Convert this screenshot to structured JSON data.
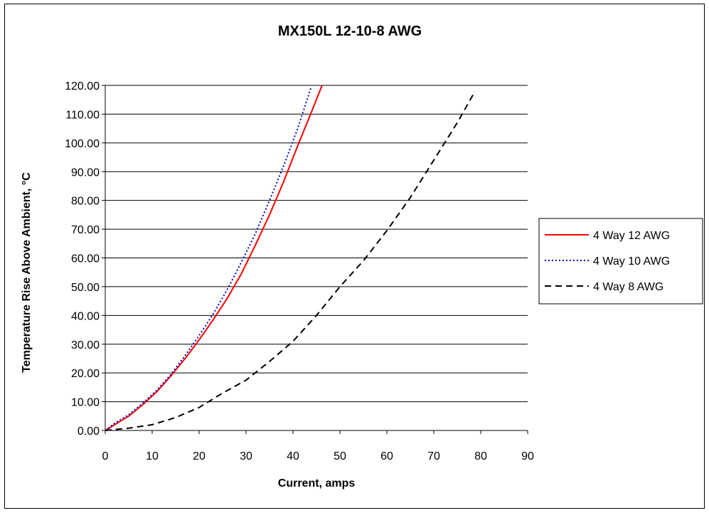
{
  "chart_data": {
    "type": "line",
    "title": "MX150L 12-10-8 AWG",
    "xlabel": "Current, amps",
    "ylabel": "Temperature Rise Above Ambient, °C",
    "xlim": [
      0,
      90
    ],
    "ylim": [
      0,
      120
    ],
    "xticks": [
      "0",
      "10",
      "20",
      "30",
      "40",
      "50",
      "60",
      "70",
      "80",
      "90"
    ],
    "yticks": [
      "0.00",
      "10.00",
      "20.00",
      "30.00",
      "40.00",
      "50.00",
      "60.00",
      "70.00",
      "80.00",
      "90.00",
      "100.00",
      "110.00",
      "120.00"
    ],
    "grid": "horizontal",
    "legend_position": "right",
    "series": [
      {
        "name": "4 Way 12 AWG",
        "color": "#ff0000",
        "style": "solid",
        "x": [
          0,
          2,
          5,
          8,
          11,
          14,
          17,
          20,
          23,
          26,
          29,
          32,
          35,
          38,
          41,
          44,
          46.2
        ],
        "y": [
          0,
          2,
          5,
          9,
          13.5,
          19,
          25,
          31.5,
          38.5,
          46,
          54.5,
          64.5,
          75,
          86.5,
          99,
          111,
          120
        ]
      },
      {
        "name": "4 Way 10 AWG",
        "color": "#0000cc",
        "style": "dotted",
        "x": [
          0,
          2,
          5,
          8,
          11,
          14,
          17,
          20,
          23,
          26,
          29,
          32,
          35,
          38,
          41,
          43.8
        ],
        "y": [
          0,
          2.5,
          5.5,
          9.5,
          14,
          19.5,
          26,
          33,
          40.5,
          49,
          58.5,
          68.5,
          80,
          92,
          105,
          119
        ]
      },
      {
        "name": "4 Way 8 AWG",
        "color": "#000000",
        "style": "dashed",
        "x": [
          0,
          5,
          10,
          15,
          20,
          25,
          30,
          35,
          40,
          45,
          50,
          55,
          60,
          65,
          70,
          75,
          78.8
        ],
        "y": [
          0,
          0.8,
          2,
          4.5,
          8,
          13,
          17.5,
          24,
          31,
          40,
          50,
          59,
          69.5,
          81,
          94,
          107,
          118
        ]
      }
    ]
  }
}
